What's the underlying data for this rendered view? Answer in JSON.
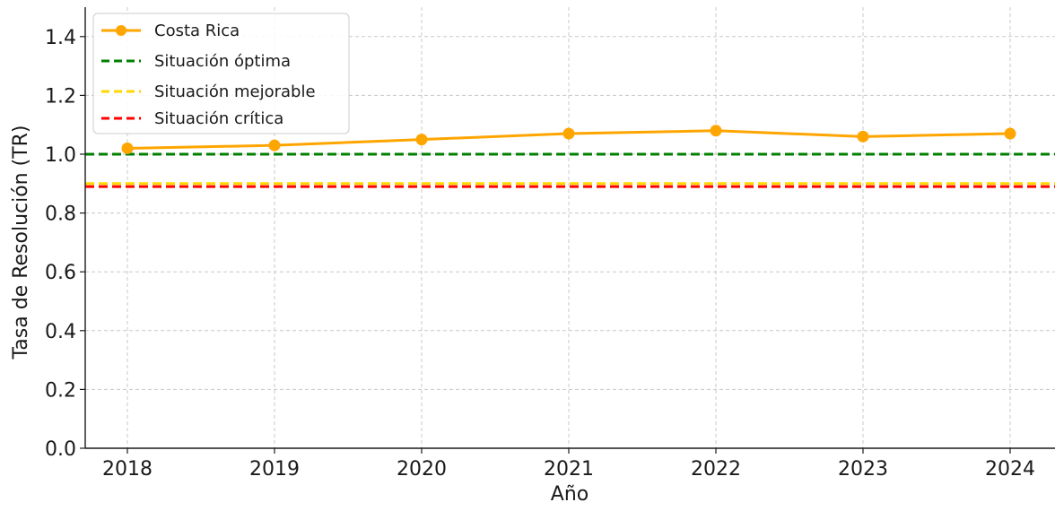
{
  "chart_data": {
    "type": "line",
    "xlabel": "Año",
    "ylabel": "Tasa de Resolución (TR)",
    "x": [
      2018,
      2019,
      2020,
      2021,
      2022,
      2023,
      2024
    ],
    "x_tick_labels": [
      "2018",
      "2019",
      "2020",
      "2021",
      "2022",
      "2023",
      "2024"
    ],
    "ylim": [
      0,
      1.5
    ],
    "y_ticks": [
      0.0,
      0.2,
      0.4,
      0.6,
      0.8,
      1.0,
      1.2,
      1.4
    ],
    "y_tick_labels": [
      "0.0",
      "0.2",
      "0.4",
      "0.6",
      "0.8",
      "1.0",
      "1.2",
      "1.4"
    ],
    "grid": true,
    "legend_position": "top-left",
    "series": [
      {
        "name": "Costa Rica",
        "style": "solid-with-markers",
        "color": "#FFA500",
        "values": [
          1.02,
          1.03,
          1.05,
          1.07,
          1.08,
          1.06,
          1.07
        ]
      }
    ],
    "reference_lines": [
      {
        "name": "Situación óptima",
        "value": 1.0,
        "color": "#008000",
        "style": "dashed"
      },
      {
        "name": "Situación mejorable",
        "value": 0.9,
        "color": "#FFD700",
        "style": "dashed"
      },
      {
        "name": "Situación crítica",
        "value": 0.89,
        "color": "#FF0000",
        "style": "dashed"
      }
    ]
  }
}
